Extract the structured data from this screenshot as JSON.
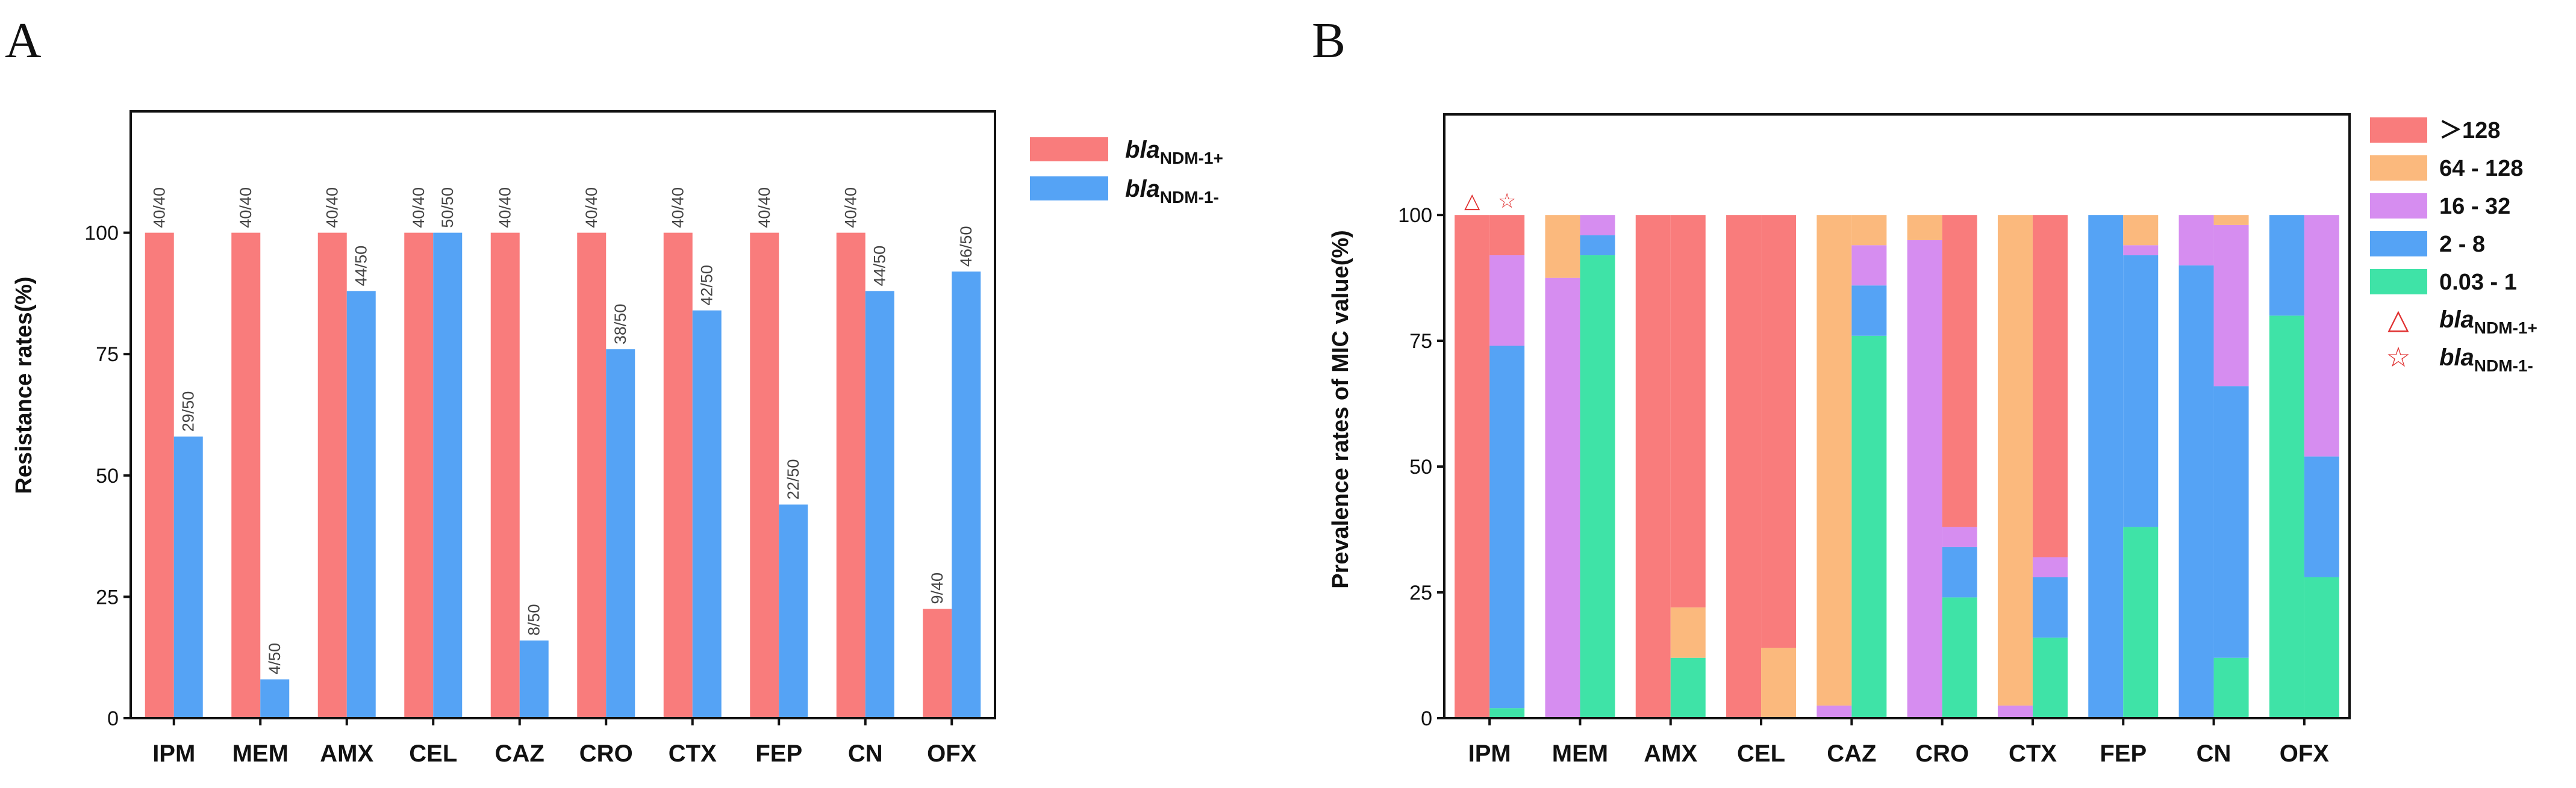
{
  "chart_data": [
    {
      "panel": "A",
      "type": "bar",
      "categories": [
        "IPM",
        "MEM",
        "AMX",
        "CEL",
        "CAZ",
        "CRO",
        "CTX",
        "FEP",
        "CN",
        "OFX"
      ],
      "ylabel": "Resistance rates(%)",
      "ylim": [
        0,
        125
      ],
      "yticks": [
        "0",
        "25",
        "50",
        "75",
        "100"
      ],
      "legend_position": "right",
      "series": [
        {
          "name": {
            "base": "bla",
            "sub": "NDM-1+"
          },
          "color": "#f97c7c",
          "values": [
            100,
            100,
            100,
            100,
            100,
            100,
            100,
            100,
            100,
            22.5
          ],
          "labels": [
            "40/40",
            "40/40",
            "40/40",
            "40/40",
            "40/40",
            "40/40",
            "40/40",
            "40/40",
            "40/40",
            "9/40"
          ]
        },
        {
          "name": {
            "base": "bla",
            "sub": "NDM-1-"
          },
          "color": "#55a3f5",
          "values": [
            58,
            8,
            88,
            100,
            16,
            76,
            84,
            44,
            88,
            92
          ],
          "labels": [
            "29/50",
            "4/50",
            "44/50",
            "50/50",
            "8/50",
            "38/50",
            "42/50",
            "22/50",
            "44/50",
            "46/50"
          ]
        }
      ]
    },
    {
      "panel": "B",
      "type": "bar",
      "stacked": true,
      "categories": [
        "IPM",
        "MEM",
        "AMX",
        "CEL",
        "CAZ",
        "CRO",
        "CTX",
        "FEP",
        "CN",
        "OFX"
      ],
      "ylabel": "Prevalence rates of MIC value(%)",
      "ylim": [
        0,
        120
      ],
      "yticks": [
        "0",
        "25",
        "50",
        "75",
        "100"
      ],
      "legend_position": "right",
      "ranges": [
        {
          "label": "＞128",
          "color": "#f97c7c"
        },
        {
          "label": "64 - 128",
          "color": "#fbb97d"
        },
        {
          "label": "16 - 32",
          "color": "#d68df0"
        },
        {
          "label": "2 - 8",
          "color": "#55a3f5"
        },
        {
          "label": "0.03 - 1",
          "color": "#3fe3a7"
        }
      ],
      "markers": [
        {
          "symbol": "△",
          "name": {
            "base": "bla",
            "sub": "NDM-1+"
          },
          "color": "#e03030"
        },
        {
          "symbol": "☆",
          "name": {
            "base": "bla",
            "sub": "NDM-1-"
          },
          "color": "#e03030"
        }
      ],
      "bars": {
        "ndm_pos": [
          [
            100,
            0,
            0,
            0,
            0
          ],
          [
            0,
            12.5,
            87.5,
            0,
            0
          ],
          [
            100,
            0,
            0,
            0,
            0
          ],
          [
            100,
            0,
            0,
            0,
            0
          ],
          [
            0,
            97.5,
            2.5,
            0,
            0
          ],
          [
            0,
            5,
            95,
            0,
            0
          ],
          [
            0,
            97.5,
            2.5,
            0,
            0
          ],
          [
            0,
            0,
            0,
            100,
            0
          ],
          [
            0,
            0,
            10,
            90,
            0
          ],
          [
            0,
            0,
            0,
            20,
            80
          ]
        ],
        "ndm_neg": [
          [
            8,
            0,
            18,
            72,
            2
          ],
          [
            0,
            0,
            4,
            4,
            92
          ],
          [
            78,
            10,
            0,
            0,
            12
          ],
          [
            86,
            14,
            0,
            0,
            0
          ],
          [
            0,
            6,
            8,
            10,
            76
          ],
          [
            62,
            0,
            4,
            10,
            24
          ],
          [
            68,
            0,
            4,
            12,
            16
          ],
          [
            0,
            6,
            2,
            54,
            38
          ],
          [
            0,
            2,
            32,
            54,
            12
          ],
          [
            0,
            0,
            48,
            24,
            28
          ]
        ]
      }
    }
  ],
  "figure": {
    "labels": [
      "A",
      "B"
    ]
  }
}
